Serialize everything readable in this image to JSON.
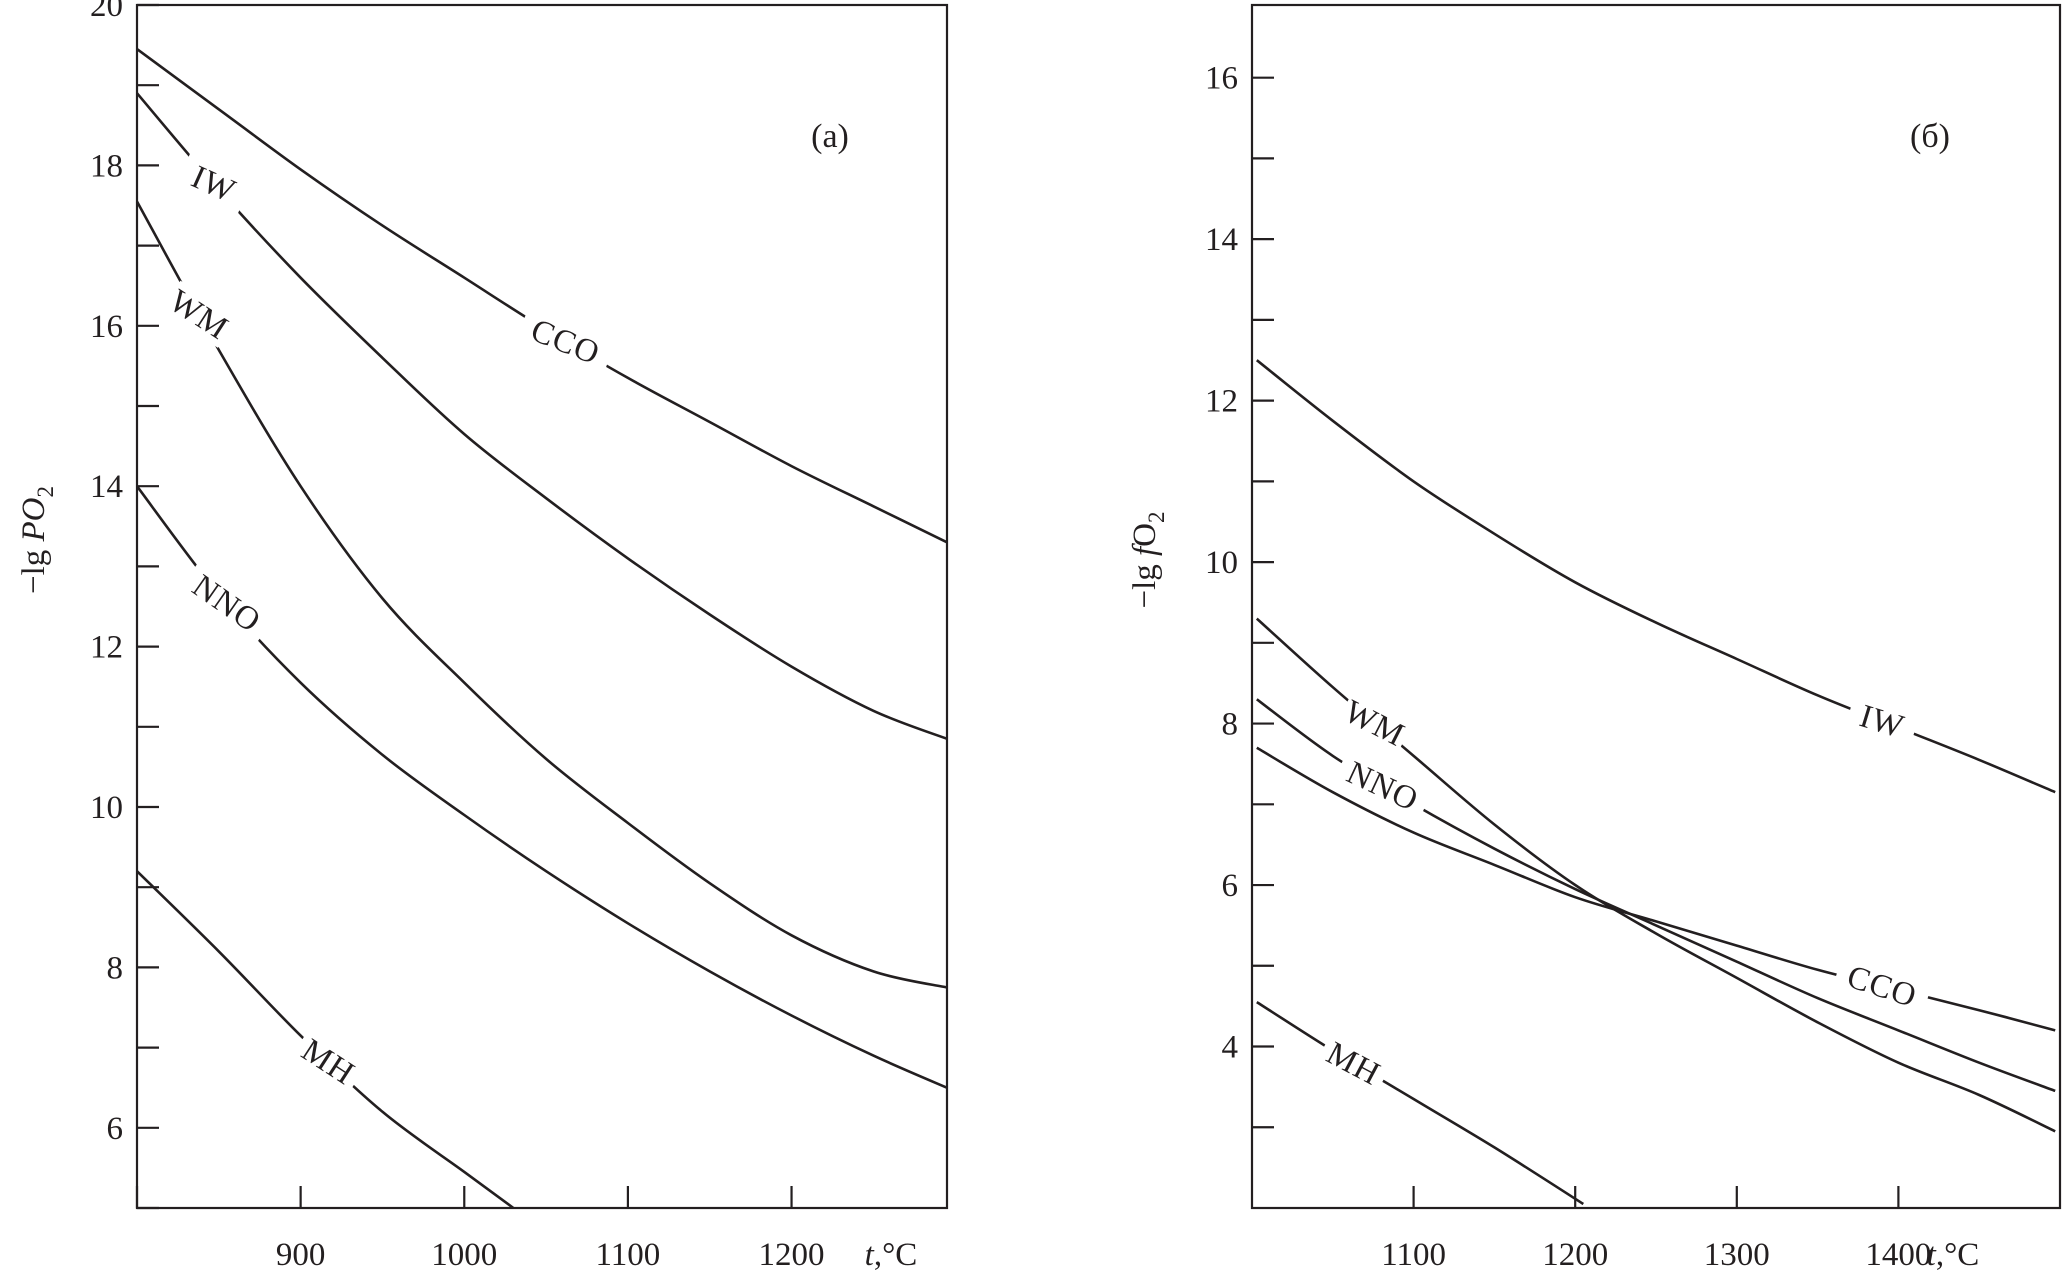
{
  "chart_data": [
    {
      "type": "line",
      "panel_label": "(a)",
      "xlabel": "t,°C",
      "ylabel": "−lg PO",
      "ylabel_sub": "2",
      "xlim": [
        800,
        1295
      ],
      "ylim": [
        5,
        20
      ],
      "x_ticks": [
        800,
        900,
        1000,
        1100,
        1200
      ],
      "x_tick_labels": [
        "",
        "900",
        "1000",
        "1100",
        "1200"
      ],
      "y_ticks": [
        5,
        6,
        7,
        8,
        9,
        10,
        11,
        12,
        13,
        14,
        15,
        16,
        17,
        18,
        19,
        20
      ],
      "y_tick_labels": [
        "",
        "6",
        "",
        "8",
        "",
        "10",
        "",
        "12",
        "",
        "14",
        "",
        "16",
        "",
        "18",
        "",
        "20"
      ],
      "series": [
        {
          "name": "CCO",
          "label_x": 1062,
          "x": [
            800,
            850,
            900,
            950,
            1000,
            1050,
            1100,
            1150,
            1200,
            1250,
            1295
          ],
          "y": [
            19.45,
            18.7,
            17.95,
            17.25,
            16.6,
            15.95,
            15.35,
            14.8,
            14.25,
            13.75,
            13.3
          ]
        },
        {
          "name": "IW",
          "label_x": 847,
          "x": [
            800,
            850,
            900,
            950,
            1000,
            1050,
            1100,
            1150,
            1200,
            1250,
            1295
          ],
          "y": [
            18.9,
            17.7,
            16.6,
            15.6,
            14.65,
            13.85,
            13.1,
            12.4,
            11.75,
            11.2,
            10.85
          ]
        },
        {
          "name": "WM",
          "label_x": 838,
          "x": [
            800,
            850,
            900,
            950,
            1000,
            1050,
            1100,
            1150,
            1200,
            1250,
            1295
          ],
          "y": [
            17.55,
            15.7,
            14.0,
            12.6,
            11.55,
            10.6,
            9.8,
            9.05,
            8.4,
            7.95,
            7.75
          ]
        },
        {
          "name": "NNO",
          "label_x": 855,
          "x": [
            800,
            850,
            900,
            950,
            1000,
            1050,
            1100,
            1150,
            1200,
            1250,
            1295
          ],
          "y": [
            14.0,
            12.65,
            11.55,
            10.65,
            9.9,
            9.2,
            8.55,
            7.95,
            7.4,
            6.9,
            6.5
          ]
        },
        {
          "name": "MH",
          "label_x": 917,
          "x": [
            800,
            850,
            900,
            950,
            1000,
            1030
          ],
          "y": [
            9.2,
            8.2,
            7.15,
            6.2,
            5.45,
            5.0
          ]
        }
      ]
    },
    {
      "type": "line",
      "panel_label": "(б)",
      "xlabel": "t,°C",
      "ylabel": "−lg fO",
      "ylabel_sub": "2",
      "xlim": [
        1000,
        1500
      ],
      "ylim": [
        2,
        16.9
      ],
      "x_ticks": [
        1100,
        1200,
        1300,
        1400
      ],
      "x_tick_labels": [
        "1100",
        "1200",
        "1300",
        "1400"
      ],
      "y_ticks": [
        3,
        4,
        5,
        6,
        7,
        8,
        9,
        10,
        11,
        12,
        13,
        14,
        15,
        16
      ],
      "y_tick_labels": [
        "",
        "4",
        "",
        "6",
        "",
        "8",
        "",
        "10",
        "",
        "12",
        "",
        "14",
        "",
        "16"
      ],
      "series": [
        {
          "name": "IW",
          "label_x": 1390,
          "x": [
            1003,
            1050,
            1100,
            1150,
            1200,
            1250,
            1300,
            1350,
            1400,
            1450,
            1497
          ],
          "y": [
            12.5,
            11.75,
            11.0,
            10.35,
            9.75,
            9.25,
            8.8,
            8.35,
            7.95,
            7.55,
            7.15
          ]
        },
        {
          "name": "WM",
          "label_x": 1076,
          "x": [
            1003,
            1050,
            1100,
            1150,
            1200,
            1250,
            1300,
            1350,
            1400,
            1450,
            1497
          ],
          "y": [
            9.3,
            8.45,
            7.6,
            6.75,
            6.0,
            5.4,
            4.85,
            4.3,
            3.8,
            3.4,
            2.95
          ]
        },
        {
          "name": "NNO",
          "label_x": 1081,
          "x": [
            1003,
            1050,
            1100,
            1150,
            1200,
            1250,
            1300,
            1350,
            1400,
            1450,
            1497
          ],
          "y": [
            8.3,
            7.6,
            7.0,
            6.45,
            5.95,
            5.5,
            5.05,
            4.6,
            4.2,
            3.8,
            3.45
          ]
        },
        {
          "name": "CCO",
          "label_x": 1390,
          "x": [
            1003,
            1050,
            1100,
            1150,
            1200,
            1250,
            1300,
            1350,
            1400,
            1450,
            1497
          ],
          "y": [
            7.7,
            7.15,
            6.65,
            6.25,
            5.85,
            5.55,
            5.25,
            4.95,
            4.7,
            4.45,
            4.2
          ]
        },
        {
          "name": "MH",
          "label_x": 1063,
          "x": [
            1003,
            1050,
            1100,
            1150,
            1205
          ],
          "y": [
            4.55,
            3.95,
            3.35,
            2.75,
            2.05
          ]
        }
      ]
    }
  ]
}
